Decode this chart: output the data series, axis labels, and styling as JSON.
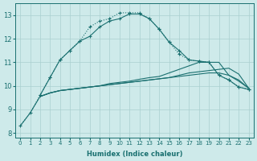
{
  "xlabel": "Humidex (Indice chaleur)",
  "bg_color": "#ceeaea",
  "grid_color": "#aacfcf",
  "line_color": "#1a7070",
  "xlim": [
    -0.5,
    23.5
  ],
  "ylim": [
    7.8,
    13.5
  ],
  "xticks": [
    0,
    1,
    2,
    3,
    4,
    5,
    6,
    7,
    8,
    9,
    10,
    11,
    12,
    13,
    14,
    15,
    16,
    17,
    18,
    19,
    20,
    21,
    22,
    23
  ],
  "yticks": [
    8,
    9,
    10,
    11,
    12,
    13
  ],
  "line_arch_dot_x": [
    0,
    1,
    2,
    3,
    4,
    5,
    6,
    7,
    8,
    9,
    10,
    11,
    12,
    13,
    14,
    15,
    16,
    17,
    18,
    19,
    20,
    21,
    22,
    23
  ],
  "line_arch_dot_y": [
    8.3,
    8.85,
    9.6,
    10.35,
    11.1,
    11.5,
    11.9,
    12.5,
    12.75,
    12.85,
    13.1,
    13.1,
    13.1,
    12.85,
    12.4,
    11.85,
    11.35,
    11.1,
    11.05,
    11.0,
    10.45,
    10.25,
    9.95,
    9.85
  ],
  "line_arch_solid_x": [
    2,
    3,
    4,
    5,
    6,
    7,
    8,
    9,
    10,
    11,
    12,
    13,
    14,
    15,
    16,
    17,
    18,
    19,
    20,
    21,
    22,
    23
  ],
  "line_arch_solid_y": [
    9.6,
    10.35,
    11.1,
    11.5,
    11.9,
    12.1,
    12.5,
    12.75,
    12.85,
    13.05,
    13.05,
    12.85,
    12.4,
    11.85,
    11.5,
    11.1,
    11.05,
    11.0,
    10.45,
    10.25,
    9.95,
    9.85
  ],
  "line_flat1_x": [
    0,
    1,
    2,
    3,
    4,
    5,
    6,
    7,
    8,
    9,
    10,
    11,
    12,
    13,
    14,
    15,
    16,
    17,
    18,
    19,
    20,
    21,
    22,
    23
  ],
  "line_flat1_y": [
    8.3,
    8.85,
    9.55,
    9.7,
    9.8,
    9.85,
    9.9,
    9.95,
    10.0,
    10.05,
    10.1,
    10.15,
    10.2,
    10.25,
    10.3,
    10.35,
    10.4,
    10.45,
    10.5,
    10.55,
    10.55,
    10.45,
    10.2,
    9.9
  ],
  "line_flat2_x": [
    2,
    3,
    4,
    5,
    6,
    7,
    8,
    9,
    10,
    11,
    12,
    13,
    14,
    15,
    16,
    17,
    18,
    19,
    20,
    21,
    22,
    23
  ],
  "line_flat2_y": [
    9.55,
    9.7,
    9.8,
    9.85,
    9.9,
    9.95,
    10.0,
    10.05,
    10.1,
    10.15,
    10.2,
    10.25,
    10.3,
    10.35,
    10.45,
    10.55,
    10.6,
    10.65,
    10.7,
    10.75,
    10.5,
    9.9
  ],
  "line_flat3_x": [
    2,
    3,
    4,
    5,
    6,
    7,
    8,
    9,
    10,
    11,
    12,
    13,
    14,
    15,
    16,
    17,
    18,
    19,
    20,
    21,
    22,
    23
  ],
  "line_flat3_y": [
    9.55,
    9.7,
    9.8,
    9.85,
    9.9,
    9.95,
    10.0,
    10.1,
    10.15,
    10.2,
    10.28,
    10.35,
    10.4,
    10.55,
    10.7,
    10.85,
    11.0,
    11.0,
    11.0,
    10.45,
    10.25,
    9.9
  ]
}
